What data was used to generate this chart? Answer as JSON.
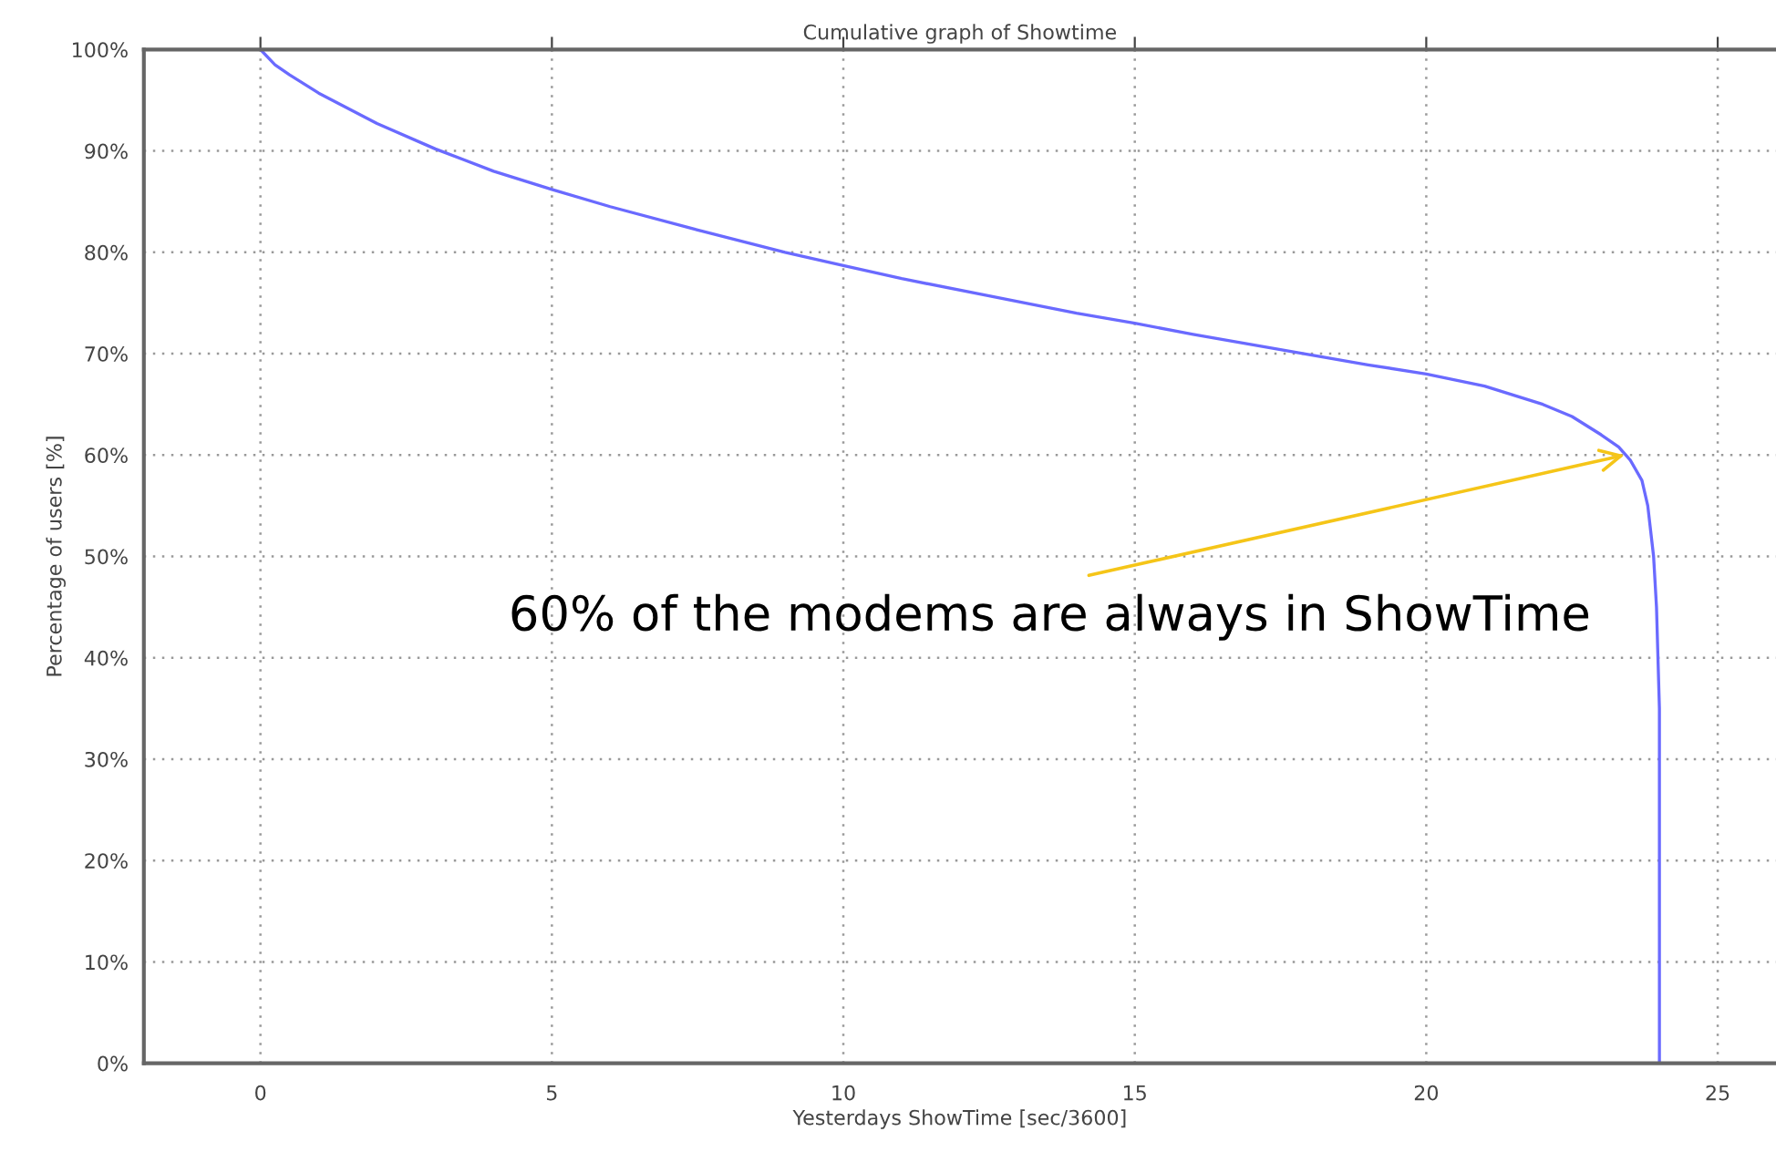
{
  "chart_data": {
    "type": "line",
    "title": "Cumulative graph of Showtime",
    "xlabel": "Yesterdays ShowTime [sec/3600]",
    "ylabel": "Percentage of users [%]",
    "x": [
      0,
      0.25,
      0.5,
      1,
      2,
      3,
      4,
      5,
      6,
      7.5,
      9,
      10,
      11,
      12.5,
      14,
      15,
      16,
      17.5,
      19,
      20,
      21,
      22,
      22.5,
      23,
      23.3,
      23.5,
      23.7,
      23.8,
      23.9,
      23.95,
      24,
      24
    ],
    "series": [
      {
        "color": "#6a6aff",
        "values": [
          100,
          98.5,
          97.5,
          95.7,
          92.7,
          90.2,
          88,
          86.2,
          84.5,
          82.2,
          80,
          78.7,
          77.4,
          75.7,
          74,
          73,
          71.9,
          70.4,
          68.9,
          68,
          66.8,
          65,
          63.8,
          62,
          60.8,
          59.5,
          57.5,
          55,
          50,
          45,
          35,
          0
        ]
      }
    ],
    "xlim": [
      -2,
      26
    ],
    "ylim": [
      0,
      100
    ],
    "xticks": [
      0,
      5,
      10,
      15,
      20,
      25
    ],
    "yticks": [
      {
        "value": 0,
        "label": "0%"
      },
      {
        "value": 10,
        "label": "10%"
      },
      {
        "value": 20,
        "label": "20%"
      },
      {
        "value": 30,
        "label": "30%"
      },
      {
        "value": 40,
        "label": "40%"
      },
      {
        "value": 50,
        "label": "50%"
      },
      {
        "value": 60,
        "label": "60%"
      },
      {
        "value": 70,
        "label": "70%"
      },
      {
        "value": 80,
        "label": "80%"
      },
      {
        "value": 90,
        "label": "90%"
      },
      {
        "value": 100,
        "label": "100%"
      }
    ],
    "grid": true,
    "legend": false,
    "marker": "none",
    "line_style": "solid",
    "annotations": [
      {
        "text": "60% of the modems are always in ShowTime",
        "x": 23.4,
        "y": 60
      }
    ]
  }
}
